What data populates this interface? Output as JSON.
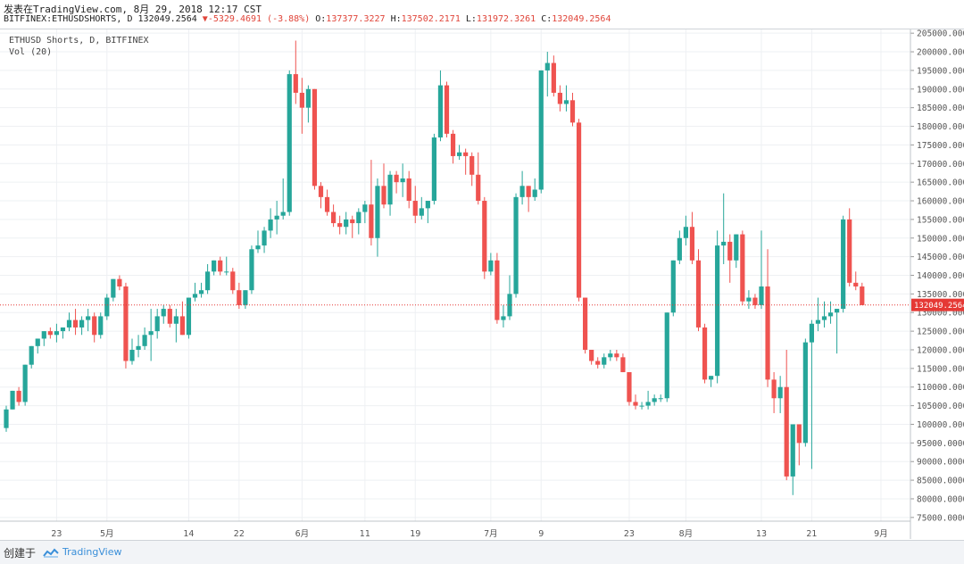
{
  "header": {
    "published": "发表在TradingView.com, 8月 29, 2018 12:17 CST",
    "symbol": "BITFINEX:ETHUSDSHORTS, D",
    "last": "132049.2564",
    "change": "-5329.4691 (-3.88%)",
    "open_label": "O:",
    "open": "137377.3227",
    "high_label": "H:",
    "high": "137502.2171",
    "low_label": "L:",
    "low": "131972.3261",
    "close_label": "C:",
    "close": "132049.2564"
  },
  "legend": {
    "title": "ETHUSD Shorts, D, BITFINEX",
    "indicator": "Vol (20)"
  },
  "footer": {
    "created": "创建于",
    "brand": "TradingView",
    "brand_icon": "tradingview-logo-icon"
  },
  "colors": {
    "up": "#26a69a",
    "down": "#ef5350",
    "price_line": "#e53935",
    "grid": "#eef0f3",
    "axis_text": "#555555"
  },
  "chart_data": {
    "type": "candlestick",
    "ylim": [
      74000,
      206000
    ],
    "y_ticks": [
      "75000.0000",
      "80000.0000",
      "85000.0000",
      "90000.0000",
      "95000.0000",
      "100000.0000",
      "105000.0000",
      "110000.0000",
      "115000.0000",
      "120000.0000",
      "125000.0000",
      "130000.0000",
      "135000.0000",
      "140000.0000",
      "145000.0000",
      "150000.0000",
      "155000.0000",
      "160000.0000",
      "165000.0000",
      "170000.0000",
      "175000.0000",
      "180000.0000",
      "185000.0000",
      "190000.0000",
      "195000.0000",
      "200000.0000",
      "205000.0000"
    ],
    "x_ticks": [
      {
        "label": "23",
        "index": 8
      },
      {
        "label": "5月",
        "index": 16
      },
      {
        "label": "14",
        "index": 29
      },
      {
        "label": "22",
        "index": 37
      },
      {
        "label": "6月",
        "index": 47
      },
      {
        "label": "11",
        "index": 57
      },
      {
        "label": "19",
        "index": 65
      },
      {
        "label": "7月",
        "index": 77
      },
      {
        "label": "9",
        "index": 85
      },
      {
        "label": "23",
        "index": 99
      },
      {
        "label": "8月",
        "index": 108
      },
      {
        "label": "13",
        "index": 120
      },
      {
        "label": "21",
        "index": 128
      },
      {
        "label": "9月",
        "index": 139
      }
    ],
    "current_price": 132049.2564,
    "current_price_label": "132049.2564",
    "candles": [
      [
        99000,
        105000,
        98000,
        104000
      ],
      [
        104000,
        109000,
        104000,
        109000
      ],
      [
        109000,
        110000,
        105000,
        106000
      ],
      [
        106000,
        116000,
        105000,
        116000
      ],
      [
        116000,
        121000,
        115000,
        121000
      ],
      [
        121000,
        123000,
        119000,
        123000
      ],
      [
        123000,
        125000,
        121000,
        125000
      ],
      [
        125000,
        126000,
        123000,
        124000
      ],
      [
        124000,
        127000,
        122000,
        125000
      ],
      [
        125000,
        126000,
        123000,
        126000
      ],
      [
        126000,
        130000,
        125000,
        128000
      ],
      [
        128000,
        131000,
        124000,
        126000
      ],
      [
        126000,
        129000,
        124000,
        128000
      ],
      [
        128000,
        131000,
        125000,
        129000
      ],
      [
        129000,
        130000,
        122000,
        124000
      ],
      [
        124000,
        130000,
        123000,
        129000
      ],
      [
        129000,
        135000,
        128000,
        134000
      ],
      [
        134000,
        139000,
        133000,
        139000
      ],
      [
        139000,
        140000,
        136000,
        137000
      ],
      [
        137000,
        138000,
        115000,
        117000
      ],
      [
        117000,
        123000,
        116000,
        120000
      ],
      [
        120000,
        124000,
        118000,
        121000
      ],
      [
        121000,
        126000,
        120000,
        124000
      ],
      [
        124000,
        131000,
        117000,
        125000
      ],
      [
        125000,
        131000,
        123000,
        129000
      ],
      [
        129000,
        132000,
        127000,
        131000
      ],
      [
        131000,
        132000,
        126000,
        127000
      ],
      [
        127000,
        131000,
        122000,
        129000
      ],
      [
        129000,
        133000,
        124000,
        124000
      ],
      [
        124000,
        134000,
        123000,
        134000
      ],
      [
        134000,
        138000,
        133000,
        135000
      ],
      [
        135000,
        138000,
        134000,
        136000
      ],
      [
        136000,
        143000,
        135000,
        141000
      ],
      [
        141000,
        144000,
        140000,
        144000
      ],
      [
        144000,
        145000,
        140000,
        141000
      ],
      [
        141000,
        145000,
        140000,
        141000
      ],
      [
        141000,
        142000,
        135000,
        136000
      ],
      [
        136000,
        138000,
        131000,
        132000
      ],
      [
        132000,
        136000,
        131000,
        136000
      ],
      [
        136000,
        148000,
        135000,
        147000
      ],
      [
        147000,
        152000,
        146000,
        148000
      ],
      [
        148000,
        153000,
        146000,
        152000
      ],
      [
        152000,
        158000,
        150000,
        155000
      ],
      [
        155000,
        160000,
        151000,
        156000
      ],
      [
        156000,
        166000,
        155000,
        157000
      ],
      [
        157000,
        195000,
        156000,
        194000
      ],
      [
        194000,
        203000,
        186000,
        189000
      ],
      [
        189000,
        193000,
        178000,
        185000
      ],
      [
        185000,
        191000,
        181000,
        190000
      ],
      [
        190000,
        190000,
        163000,
        164000
      ],
      [
        164000,
        165000,
        158000,
        161000
      ],
      [
        161000,
        163000,
        156000,
        157000
      ],
      [
        157000,
        159000,
        153000,
        154000
      ],
      [
        154000,
        156000,
        151000,
        153000
      ],
      [
        153000,
        157000,
        151000,
        155000
      ],
      [
        155000,
        156000,
        150000,
        154000
      ],
      [
        154000,
        158000,
        151000,
        157000
      ],
      [
        157000,
        160000,
        154000,
        159000
      ],
      [
        159000,
        171000,
        148000,
        150000
      ],
      [
        150000,
        166000,
        145000,
        164000
      ],
      [
        164000,
        170000,
        158000,
        159000
      ],
      [
        159000,
        168000,
        156000,
        167000
      ],
      [
        167000,
        168000,
        162000,
        165000
      ],
      [
        165000,
        170000,
        161000,
        166000
      ],
      [
        166000,
        168000,
        158000,
        160000
      ],
      [
        160000,
        164000,
        154000,
        156000
      ],
      [
        156000,
        161000,
        155000,
        158000
      ],
      [
        158000,
        159000,
        154000,
        160000
      ],
      [
        160000,
        178000,
        159000,
        177000
      ],
      [
        177000,
        195000,
        176000,
        191000
      ],
      [
        191000,
        192000,
        177000,
        178000
      ],
      [
        178000,
        179000,
        170000,
        172000
      ],
      [
        172000,
        175000,
        171000,
        173000
      ],
      [
        173000,
        174000,
        167000,
        172000
      ],
      [
        172000,
        173000,
        164000,
        167000
      ],
      [
        167000,
        173000,
        159000,
        160000
      ],
      [
        160000,
        161000,
        139000,
        141000
      ],
      [
        141000,
        146000,
        140000,
        144000
      ],
      [
        144000,
        146000,
        127000,
        128000
      ],
      [
        128000,
        132000,
        126000,
        129000
      ],
      [
        129000,
        140000,
        128000,
        135000
      ],
      [
        135000,
        162000,
        134000,
        161000
      ],
      [
        161000,
        168000,
        159000,
        164000
      ],
      [
        164000,
        164000,
        157000,
        161000
      ],
      [
        161000,
        166000,
        160000,
        163000
      ],
      [
        163000,
        195000,
        162000,
        195000
      ],
      [
        195000,
        200000,
        188000,
        197000
      ],
      [
        197000,
        199000,
        188000,
        189000
      ],
      [
        189000,
        191000,
        184000,
        186000
      ],
      [
        186000,
        191000,
        184000,
        187000
      ],
      [
        187000,
        189000,
        180000,
        181000
      ],
      [
        181000,
        182000,
        133000,
        134000
      ],
      [
        134000,
        134000,
        119000,
        120000
      ],
      [
        120000,
        120000,
        116000,
        117000
      ],
      [
        117000,
        118000,
        115000,
        116000
      ],
      [
        116000,
        119000,
        115000,
        118000
      ],
      [
        118000,
        120000,
        117000,
        119000
      ],
      [
        119000,
        120000,
        117000,
        118000
      ],
      [
        118000,
        119000,
        114000,
        114000
      ],
      [
        114000,
        114000,
        105000,
        106000
      ],
      [
        106000,
        108000,
        104000,
        105000
      ],
      [
        105000,
        106000,
        104000,
        105000
      ],
      [
        105000,
        109000,
        104000,
        106000
      ],
      [
        106000,
        108000,
        105000,
        107000
      ],
      [
        107000,
        108000,
        106000,
        107000
      ],
      [
        107000,
        130000,
        106000,
        130000
      ],
      [
        130000,
        144000,
        129000,
        144000
      ],
      [
        144000,
        152000,
        143000,
        150000
      ],
      [
        150000,
        156000,
        148000,
        153000
      ],
      [
        153000,
        157000,
        143000,
        144000
      ],
      [
        144000,
        147000,
        125000,
        126000
      ],
      [
        126000,
        127000,
        111000,
        112000
      ],
      [
        112000,
        113000,
        110000,
        113000
      ],
      [
        113000,
        152000,
        111000,
        148000
      ],
      [
        148000,
        162000,
        143000,
        149000
      ],
      [
        149000,
        151000,
        138000,
        144000
      ],
      [
        144000,
        151000,
        142000,
        151000
      ],
      [
        151000,
        152000,
        132000,
        133000
      ],
      [
        133000,
        136000,
        131000,
        134000
      ],
      [
        134000,
        135000,
        131000,
        132000
      ],
      [
        132000,
        152000,
        131000,
        137000
      ],
      [
        137000,
        147000,
        110000,
        112000
      ],
      [
        112000,
        114000,
        103000,
        107000
      ],
      [
        107000,
        113000,
        103000,
        110000
      ],
      [
        110000,
        120000,
        85000,
        86000
      ],
      [
        86000,
        100000,
        81000,
        100000
      ],
      [
        100000,
        100000,
        89000,
        95000
      ],
      [
        95000,
        123000,
        94000,
        122000
      ],
      [
        122000,
        128000,
        88000,
        127000
      ],
      [
        127000,
        134000,
        125000,
        128000
      ],
      [
        128000,
        133000,
        126000,
        129000
      ],
      [
        129000,
        133000,
        127000,
        130000
      ],
      [
        130000,
        131000,
        119000,
        131000
      ],
      [
        131000,
        156000,
        130000,
        155000
      ],
      [
        155000,
        158000,
        137000,
        138000
      ],
      [
        138000,
        141000,
        136000,
        137000
      ],
      [
        137000,
        138000,
        132000,
        132000
      ]
    ]
  }
}
